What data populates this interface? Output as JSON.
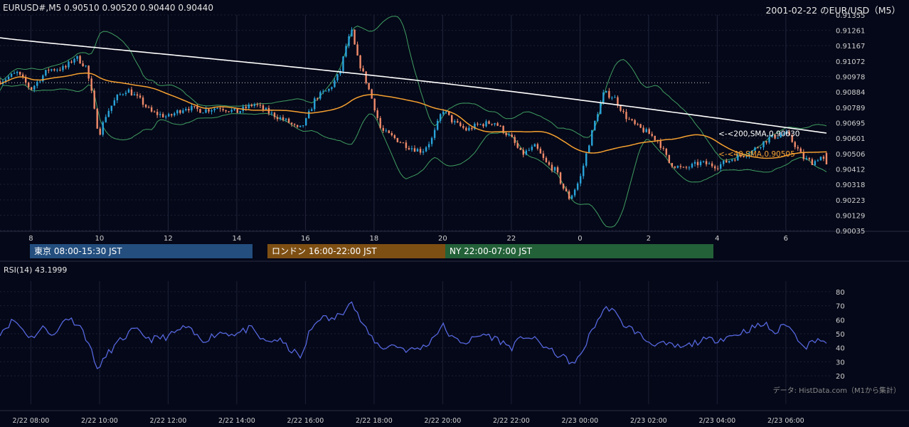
{
  "header": {
    "symbol_ohlc": "EURUSD#,M5 0.90510 0.90520 0.90440 0.90440",
    "title": "2001-02-22 のEUR/USD（M5）"
  },
  "sessions": [
    {
      "label": "東京 08:00-15:30 JST",
      "color": "#234e7e"
    },
    {
      "label": "ロンドン 16:00-22:00 JST",
      "color": "#7e4f13"
    },
    {
      "label": "NY 22:00-07:00 JST",
      "color": "#236138"
    }
  ],
  "rsi_panel": {
    "label": "RSI(14) 43.1999"
  },
  "credit": "データ: HistData.com（M1から集計）",
  "colors": {
    "background": "#050818",
    "bull": "#29a3d9",
    "bear": "#f08a6a",
    "sma200": "#ffffff",
    "sma40": "#f5a030",
    "bollinger": "#3f9d62",
    "rsi": "#5566dd",
    "ref_line": "#cfcfcf"
  },
  "chart_data": [
    {
      "type": "candlestick",
      "y_ticks": [
        "0.91355",
        "0.91261",
        "0.91167",
        "0.91072",
        "0.90978",
        "0.90884",
        "0.90789",
        "0.90695",
        "0.90601",
        "0.90506",
        "0.90412",
        "0.90318",
        "0.90223",
        "0.90129",
        "0.90035"
      ],
      "ylim": [
        0.90035,
        0.91355
      ],
      "x_tick_labels": [
        "8",
        "10",
        "12",
        "14",
        "16",
        "18",
        "20",
        "22",
        "0",
        "2",
        "4",
        "6"
      ],
      "x_tick_hours": [
        8,
        10,
        12,
        14,
        16,
        18,
        20,
        22,
        24,
        26,
        28,
        30
      ],
      "xlim_hours": [
        7.1,
        31.35
      ],
      "bar_interval_minutes": 5,
      "reference_line": 0.9094,
      "annotations": [
        {
          "text": "<-<200,SMA,0.90630",
          "value": 0.9063,
          "color": "#ffffff"
        },
        {
          "text": "<-<40,SMA,0.90505",
          "value": 0.90505,
          "color": "#f5a030"
        }
      ],
      "close_path": [
        [
          7.1,
          0.9095
        ],
        [
          7.6,
          0.91
        ],
        [
          8.0,
          0.909
        ],
        [
          8.5,
          0.9102
        ],
        [
          9.0,
          0.9103
        ],
        [
          9.3,
          0.911
        ],
        [
          9.6,
          0.9104
        ],
        [
          9.75,
          0.909
        ],
        [
          9.9,
          0.907
        ],
        [
          10.0,
          0.9063
        ],
        [
          10.2,
          0.9075
        ],
        [
          10.5,
          0.9085
        ],
        [
          10.8,
          0.909
        ],
        [
          11.2,
          0.9083
        ],
        [
          11.5,
          0.9076
        ],
        [
          12.0,
          0.9073
        ],
        [
          12.5,
          0.9079
        ],
        [
          13.0,
          0.9077
        ],
        [
          13.5,
          0.9079
        ],
        [
          14.0,
          0.9076
        ],
        [
          14.5,
          0.9081
        ],
        [
          15.0,
          0.9075
        ],
        [
          15.5,
          0.907
        ],
        [
          15.8,
          0.9065
        ],
        [
          16.0,
          0.907
        ],
        [
          16.3,
          0.9085
        ],
        [
          16.7,
          0.909
        ],
        [
          17.0,
          0.91
        ],
        [
          17.2,
          0.9118
        ],
        [
          17.35,
          0.9125
        ],
        [
          17.5,
          0.911
        ],
        [
          17.8,
          0.9093
        ],
        [
          18.0,
          0.908
        ],
        [
          18.2,
          0.9065
        ],
        [
          18.6,
          0.906
        ],
        [
          19.0,
          0.9055
        ],
        [
          19.4,
          0.9052
        ],
        [
          19.7,
          0.906
        ],
        [
          20.0,
          0.9078
        ],
        [
          20.3,
          0.907
        ],
        [
          20.7,
          0.9065
        ],
        [
          21.0,
          0.9068
        ],
        [
          21.5,
          0.907
        ],
        [
          22.0,
          0.906
        ],
        [
          22.3,
          0.905
        ],
        [
          22.7,
          0.9055
        ],
        [
          23.0,
          0.9045
        ],
        [
          23.3,
          0.904
        ],
        [
          23.5,
          0.903
        ],
        [
          23.7,
          0.9023
        ],
        [
          24.0,
          0.9035
        ],
        [
          24.3,
          0.906
        ],
        [
          24.5,
          0.9075
        ],
        [
          24.7,
          0.9088
        ],
        [
          25.0,
          0.9085
        ],
        [
          25.3,
          0.9074
        ],
        [
          25.6,
          0.9068
        ],
        [
          26.0,
          0.9063
        ],
        [
          26.3,
          0.9058
        ],
        [
          26.6,
          0.9045
        ],
        [
          27.0,
          0.9041
        ],
        [
          27.5,
          0.9045
        ],
        [
          28.0,
          0.9043
        ],
        [
          28.5,
          0.9048
        ],
        [
          29.0,
          0.9052
        ],
        [
          29.5,
          0.906
        ],
        [
          30.0,
          0.9063
        ],
        [
          30.3,
          0.9055
        ],
        [
          30.5,
          0.9048
        ],
        [
          30.8,
          0.9045
        ],
        [
          31.0,
          0.9049
        ],
        [
          31.2,
          0.9044
        ]
      ]
    },
    {
      "type": "line",
      "name": "RSI(14)",
      "y_ticks": [
        80,
        70,
        60,
        50,
        40,
        30,
        20
      ],
      "ylim": [
        15,
        85
      ],
      "x_tick_labels": [
        "2/22 08:00",
        "2/22 10:00",
        "2/22 12:00",
        "2/22 14:00",
        "2/22 16:00",
        "2/22 18:00",
        "2/22 20:00",
        "2/22 22:00",
        "2/23 00:00",
        "2/23 02:00",
        "2/23 04:00",
        "2/23 06:00"
      ],
      "path": [
        [
          7.1,
          51
        ],
        [
          7.5,
          60
        ],
        [
          8.0,
          47
        ],
        [
          8.4,
          55
        ],
        [
          8.7,
          48
        ],
        [
          9.0,
          62
        ],
        [
          9.4,
          57
        ],
        [
          9.7,
          43
        ],
        [
          9.85,
          30
        ],
        [
          10.0,
          25
        ],
        [
          10.2,
          35
        ],
        [
          10.6,
          45
        ],
        [
          11.0,
          53
        ],
        [
          11.5,
          46
        ],
        [
          12.0,
          48
        ],
        [
          12.5,
          55
        ],
        [
          13.0,
          45
        ],
        [
          13.5,
          51
        ],
        [
          14.0,
          50
        ],
        [
          14.4,
          54
        ],
        [
          14.8,
          44
        ],
        [
          15.2,
          46
        ],
        [
          15.6,
          38
        ],
        [
          15.9,
          33
        ],
        [
          16.1,
          50
        ],
        [
          16.4,
          62
        ],
        [
          16.8,
          60
        ],
        [
          17.1,
          66
        ],
        [
          17.3,
          75
        ],
        [
          17.55,
          62
        ],
        [
          17.8,
          51
        ],
        [
          18.2,
          40
        ],
        [
          18.6,
          42
        ],
        [
          19.0,
          38
        ],
        [
          19.5,
          41
        ],
        [
          20.0,
          56
        ],
        [
          20.3,
          46
        ],
        [
          20.7,
          44
        ],
        [
          21.2,
          50
        ],
        [
          21.6,
          46
        ],
        [
          22.0,
          40
        ],
        [
          22.4,
          49
        ],
        [
          22.8,
          44
        ],
        [
          23.2,
          37
        ],
        [
          23.6,
          32
        ],
        [
          23.85,
          28
        ],
        [
          24.1,
          39
        ],
        [
          24.4,
          55
        ],
        [
          24.7,
          67
        ],
        [
          24.9,
          69
        ],
        [
          25.2,
          58
        ],
        [
          25.6,
          52
        ],
        [
          26.0,
          44
        ],
        [
          26.5,
          42
        ],
        [
          27.0,
          40
        ],
        [
          27.5,
          45
        ],
        [
          28.0,
          46
        ],
        [
          28.5,
          49
        ],
        [
          29.0,
          54
        ],
        [
          29.4,
          57
        ],
        [
          29.7,
          50
        ],
        [
          30.0,
          58
        ],
        [
          30.3,
          48
        ],
        [
          30.6,
          41
        ],
        [
          30.9,
          47
        ],
        [
          31.2,
          43
        ]
      ]
    }
  ]
}
